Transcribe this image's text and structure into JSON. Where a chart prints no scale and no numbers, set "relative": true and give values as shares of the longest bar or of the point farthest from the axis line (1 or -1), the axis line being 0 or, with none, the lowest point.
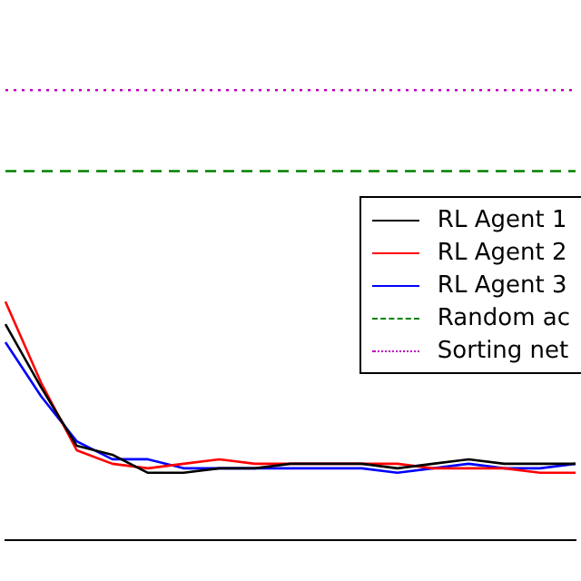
{
  "chart_data": {
    "type": "line",
    "relative": true,
    "grid": false,
    "legend": "right",
    "marker": "none",
    "categories": [
      null,
      null,
      null,
      null,
      null,
      null,
      null,
      null,
      null,
      null,
      null,
      null,
      null,
      null,
      null,
      null,
      null
    ],
    "series": [
      {
        "name": "RL Agent 1",
        "color": "#000000",
        "values": [
          0.48,
          0.34,
          0.21,
          0.19,
          0.15,
          0.15,
          0.16,
          0.16,
          0.17,
          0.17,
          0.17,
          0.16,
          0.17,
          0.18,
          0.17,
          0.17,
          0.17
        ]
      },
      {
        "name": "RL Agent 2",
        "color": "#ff0000",
        "values": [
          0.53,
          0.35,
          0.2,
          0.17,
          0.16,
          0.17,
          0.18,
          0.17,
          0.17,
          0.17,
          0.17,
          0.17,
          0.16,
          0.16,
          0.16,
          0.15,
          0.15
        ]
      },
      {
        "name": "RL Agent 3",
        "color": "#0000ff",
        "values": [
          0.44,
          0.32,
          0.22,
          0.18,
          0.18,
          0.16,
          0.16,
          0.16,
          0.16,
          0.16,
          0.16,
          0.15,
          0.16,
          0.17,
          0.16,
          0.16,
          0.17
        ]
      },
      {
        "name": "Random ac",
        "color": "#008000",
        "line_style": "dashed",
        "values": [
          0.82,
          0.82,
          0.82,
          0.82,
          0.82,
          0.82,
          0.82,
          0.82,
          0.82,
          0.82,
          0.82,
          0.82,
          0.82,
          0.82,
          0.82,
          0.82,
          0.82
        ]
      },
      {
        "name": "Sorting net",
        "color": "#bf00bf",
        "line_style": "dotted",
        "values": [
          1,
          1,
          1,
          1,
          1,
          1,
          1,
          1,
          1,
          1,
          1,
          1,
          1,
          1,
          1,
          1,
          1
        ]
      }
    ]
  }
}
